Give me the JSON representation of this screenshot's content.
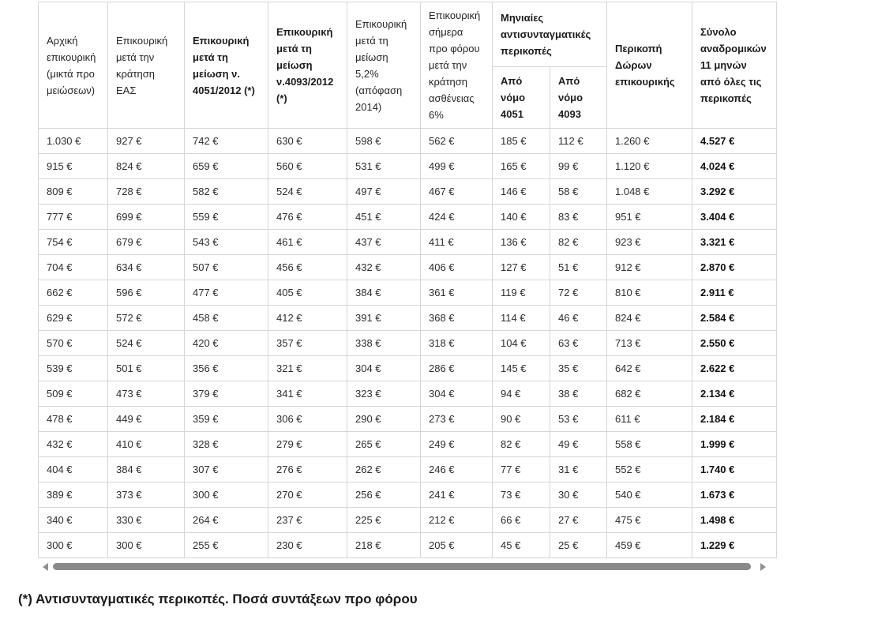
{
  "table": {
    "header_cells": [
      "Αρχική επικουρική (μικτά προ μειώσεων)",
      "Επικουρική μετά την κράτηση ΕΑΣ",
      "Επικουρική μετά τη μείωση ν. 4051/2012 (*)",
      "Επικουρική μετά τη μείωση ν.4093/2012 (*)",
      "Επικουρική μετά τη μείωση 5,2% (απόφαση 2014)",
      "Επικουρική σήμερα προ φόρου μετά την κράτηση ασθένειας 6%",
      "Περικοπή Δώρων επικουρικής",
      "Σύνολο αναδρομικών 11 μηνών από όλες τις περικοπές"
    ],
    "group": {
      "label": "Μηνιαίες αντισυνταγματικές περικοπές",
      "subs": [
        "Από νόμο 4051",
        "Από νόμο 4093"
      ]
    },
    "rows": [
      [
        "1.030 €",
        "927 €",
        "742 €",
        "630 €",
        "598 €",
        "562 €",
        "185 €",
        "112 €",
        "1.260 €",
        "4.527 €"
      ],
      [
        "915 €",
        "824 €",
        "659 €",
        "560 €",
        "531 €",
        "499 €",
        "165 €",
        "99 €",
        "1.120 €",
        "4.024 €"
      ],
      [
        "809 €",
        "728 €",
        "582 €",
        "524 €",
        "497 €",
        "467 €",
        "146 €",
        "58 €",
        "1.048 €",
        "3.292 €"
      ],
      [
        "777 €",
        "699 €",
        "559 €",
        "476 €",
        "451 €",
        "424 €",
        "140 €",
        "83 €",
        "951 €",
        "3.404 €"
      ],
      [
        "754 €",
        "679 €",
        "543 €",
        "461 €",
        "437 €",
        "411 €",
        "136 €",
        "82 €",
        "923 €",
        "3.321 €"
      ],
      [
        "704 €",
        "634 €",
        "507 €",
        "456 €",
        "432 €",
        "406 €",
        "127 €",
        "51 €",
        "912 €",
        "2.870 €"
      ],
      [
        "662 €",
        "596 €",
        "477 €",
        "405 €",
        "384 €",
        "361 €",
        "119 €",
        "72 €",
        "810 €",
        "2.911 €"
      ],
      [
        "629 €",
        "572 €",
        "458 €",
        "412 €",
        "391 €",
        "368 €",
        "114 €",
        "46 €",
        "824 €",
        "2.584 €"
      ],
      [
        "570 €",
        "524 €",
        "420 €",
        "357 €",
        "338 €",
        "318 €",
        "104 €",
        "63 €",
        "713 €",
        "2.550 €"
      ],
      [
        "539 €",
        "501 €",
        "356 €",
        "321 €",
        "304 €",
        "286 €",
        "145 €",
        "35 €",
        "642 €",
        "2.622 €"
      ],
      [
        "509 €",
        "473 €",
        "379 €",
        "341 €",
        "323 €",
        "304 €",
        "94 €",
        "38 €",
        "682 €",
        "2.134 €"
      ],
      [
        "478 €",
        "449 €",
        "359 €",
        "306 €",
        "290 €",
        "273 €",
        "90 €",
        "53 €",
        "611 €",
        "2.184 €"
      ],
      [
        "432 €",
        "410 €",
        "328 €",
        "279 €",
        "265 €",
        "249 €",
        "82 €",
        "49 €",
        "558 €",
        "1.999 €"
      ],
      [
        "404 €",
        "384 €",
        "307 €",
        "276 €",
        "262 €",
        "246 €",
        "77 €",
        "31 €",
        "552 €",
        "1.740 €"
      ],
      [
        "389 €",
        "373 €",
        "300 €",
        "270 €",
        "256 €",
        "241 €",
        "73 €",
        "30 €",
        "540 €",
        "1.673 €"
      ],
      [
        "340 €",
        "330 €",
        "264 €",
        "237 €",
        "225 €",
        "212 €",
        "66 €",
        "27 €",
        "475 €",
        "1.498 €"
      ],
      [
        "300 €",
        "300 €",
        "255 €",
        "230 €",
        "218 €",
        "205 €",
        "45 €",
        "25 €",
        "459 €",
        "1.229 €"
      ]
    ]
  },
  "scrollbar": {
    "left_icon": "left-triangle",
    "right_icon": "right-triangle"
  },
  "footnote": "(*) Αντισυνταγματικές περικοπές. Ποσά συντάξεων προ φόρου"
}
